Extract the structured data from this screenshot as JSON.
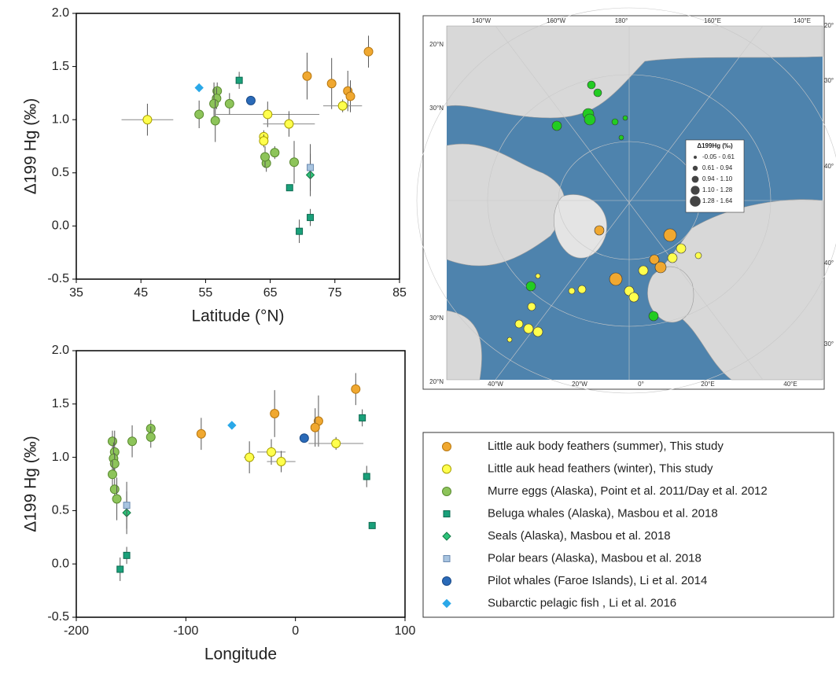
{
  "chart_data": [
    {
      "type": "scatter",
      "xlabel": "Latitude (°N)",
      "ylabel": "Δ199 Hg (‰)",
      "xlim": [
        35,
        85
      ],
      "xticks": [
        35,
        45,
        55,
        65,
        75,
        85
      ],
      "ylim": [
        -0.5,
        2
      ],
      "yticks": [
        -0.5,
        {
          "value": 0,
          "label": "0.0"
        },
        0.5,
        {
          "value": 1,
          "label": "1.0"
        },
        1.5,
        {
          "value": 2,
          "label": "2.0"
        }
      ],
      "series": [
        {
          "name": "Little auk body feathers (summer), This study",
          "color": "#f0a830",
          "marker": "circle",
          "x": [
            70.7,
            74.5,
            77,
            77.4,
            80.2
          ],
          "values": [
            1.41,
            1.34,
            1.27,
            1.22,
            1.64
          ],
          "y_err": [
            0.22,
            0.24,
            0.19,
            0.15,
            0.15
          ]
        },
        {
          "name": "Little auk head feathers (winter), This study",
          "color": "#ffff4d",
          "marker": "circle",
          "x": [
            46,
            64.6,
            67.9,
            64,
            64,
            76.2
          ],
          "values": [
            1.0,
            1.05,
            0.96,
            0.84,
            0.8,
            1.13
          ],
          "y_err": [
            0.15,
            0.12,
            0.12,
            0.06,
            0.06,
            0.06
          ],
          "x_err": [
            4,
            8,
            4,
            null,
            null,
            3
          ]
        },
        {
          "name": "Murre eggs (Alaska), Point et al. 2011/Day et al. 2012",
          "color": "#8dc45a",
          "marker": "circle",
          "x": [
            54,
            58.7,
            56.8,
            56.7,
            56.3,
            56.5,
            64.4,
            64.2,
            65.7,
            68.7
          ],
          "values": [
            1.05,
            1.15,
            1.27,
            1.2,
            1.15,
            0.99,
            0.59,
            0.65,
            0.69,
            0.6
          ],
          "y_err": [
            0.13,
            0.1,
            0.08,
            0.1,
            0.2,
            0.2,
            0.08,
            0.1,
            0.06,
            0.2
          ]
        },
        {
          "name": "Beluga whales (Alaska), Masbou et al. 2018",
          "color": "#1aa07a",
          "marker": "square",
          "x": [
            60.2,
            68,
            69.5,
            71.2
          ],
          "values": [
            1.37,
            0.36,
            -0.05,
            0.08
          ],
          "y_err": [
            0.08,
            null,
            0.11,
            0.08
          ]
        },
        {
          "name": "Seals (Alaska), Masbou et al. 2018",
          "color": "#2ec27a",
          "marker": "diamond",
          "x": [
            71.2
          ],
          "values": [
            0.48
          ],
          "y_err": [
            0.2
          ]
        },
        {
          "name": "Polar bears (Alaska), Masbou et al. 2018",
          "color": "#a8c4e0",
          "marker": "square",
          "x": [
            71.2
          ],
          "values": [
            0.55
          ],
          "y_err": [
            0.22
          ]
        },
        {
          "name": "Pilot whales (Faroe Islands), Li et al. 2014",
          "color": "#2a6ab8",
          "marker": "circle",
          "x": [
            62
          ],
          "values": [
            1.18
          ]
        },
        {
          "name": "Subarctic pelagic fish , Li et al. 2016",
          "color": "#2aa8e8",
          "marker": "diamond",
          "x": [
            54
          ],
          "values": [
            1.3
          ]
        }
      ]
    },
    {
      "type": "scatter",
      "xlabel": "Longitude",
      "ylabel": "Δ199 Hg (‰)",
      "xlim": [
        -200,
        100
      ],
      "xticks": [
        -200,
        -100,
        0,
        100
      ],
      "ylim": [
        -0.5,
        2
      ],
      "yticks": [
        -0.5,
        {
          "value": 0,
          "label": "0.0"
        },
        0.5,
        {
          "value": 1,
          "label": "1.0"
        },
        1.5,
        {
          "value": 2,
          "label": "2.0"
        }
      ],
      "series": [
        {
          "color": "#f0a830",
          "marker": "circle",
          "x": [
            -86,
            -19,
            21,
            18,
            55
          ],
          "values": [
            1.22,
            1.41,
            1.34,
            1.28,
            1.64
          ],
          "y_err": [
            0.15,
            0.22,
            0.24,
            0.18,
            0.15
          ]
        },
        {
          "color": "#ffff4d",
          "marker": "circle",
          "x": [
            -42,
            -22,
            -13,
            37
          ],
          "values": [
            1.0,
            1.05,
            0.96,
            1.13
          ],
          "y_err": [
            0.15,
            0.12,
            0.1,
            0.06
          ],
          "x_err": [
            5,
            13,
            13,
            25
          ]
        },
        {
          "color": "#8dc45a",
          "marker": "circle",
          "x": [
            -167,
            -165,
            -166,
            -165,
            -167,
            -165,
            -163,
            -149,
            -132,
            -132
          ],
          "values": [
            1.15,
            1.05,
            0.99,
            0.94,
            0.84,
            0.7,
            0.61,
            1.15,
            1.27,
            1.19
          ],
          "y_err": [
            0.1,
            0.2,
            0.15,
            0.1,
            0.13,
            0.1,
            0.2,
            0.15,
            0.08,
            0.1
          ]
        },
        {
          "color": "#1aa07a",
          "marker": "square",
          "x": [
            -160,
            -154,
            61,
            65,
            70
          ],
          "values": [
            -0.05,
            0.08,
            1.37,
            0.82,
            0.36
          ],
          "y_err": [
            0.11,
            0.08,
            0.08,
            0.1,
            null
          ]
        },
        {
          "color": "#2ec27a",
          "marker": "diamond",
          "x": [
            -154
          ],
          "values": [
            0.48
          ],
          "y_err": [
            0.2
          ]
        },
        {
          "color": "#a8c4e0",
          "marker": "square",
          "x": [
            -154
          ],
          "values": [
            0.55
          ],
          "y_err": [
            0.22
          ]
        },
        {
          "color": "#2a6ab8",
          "marker": "circle",
          "x": [
            8
          ],
          "values": [
            1.18
          ]
        },
        {
          "color": "#2aa8e8",
          "marker": "diamond",
          "x": [
            -58
          ],
          "values": [
            1.3
          ]
        }
      ]
    }
  ],
  "map": {
    "top_labels": [
      "140°W",
      "160°W",
      "180°",
      "160°E",
      "140°E"
    ],
    "bottom_labels": [
      "40°W",
      "20°W",
      "0°",
      "20°E",
      "40°E"
    ],
    "left_labels": [
      "20°N",
      "30°N",
      "30°N",
      "20°N"
    ],
    "right_labels": [
      "20°",
      "30°",
      "40°",
      "40°",
      "30°"
    ],
    "legend_title": "Δ199Hg (‰)",
    "legend_classes": [
      "-0.05 - 0.61",
      "0.61 - 0.94",
      "0.94 - 1.10",
      "1.10 - 1.28",
      "1.28 - 1.64"
    ]
  }
}
